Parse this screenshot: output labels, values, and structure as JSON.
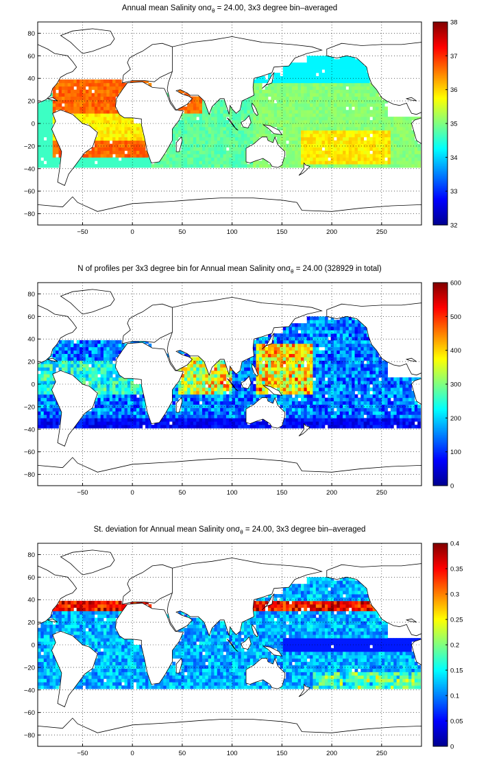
{
  "panels": [
    {
      "title_pre": "Annual mean Salinity on",
      "title_sym": "σ",
      "title_sub": "θ",
      "title_post": " = 24.00, 3x3 degree bin–averaged",
      "colorbar_ticks": [
        "38",
        "37",
        "36",
        "35",
        "34",
        "33",
        "32"
      ]
    },
    {
      "title_pre": "N of profiles per 3x3 degree bin for Annual mean Salinity on",
      "title_sym": "σ",
      "title_sub": "θ",
      "title_post": " = 24.00 (328929 in total)",
      "colorbar_ticks": [
        "600",
        "500",
        "400",
        "300",
        "200",
        "100",
        "0"
      ]
    },
    {
      "title_pre": "St. deviation for Annual mean Salinity on",
      "title_sym": "σ",
      "title_sub": "θ",
      "title_post": " = 24.00, 3x3 degree bin–averaged",
      "colorbar_ticks": [
        "0.4",
        "0.35",
        "0.3",
        "0.25",
        "0.2",
        "0.15",
        "0.1",
        "0.05",
        "0"
      ]
    }
  ],
  "axes": {
    "x_ticks": [
      "−50",
      "0",
      "50",
      "100",
      "150",
      "200",
      "250"
    ],
    "y_ticks": [
      "80",
      "60",
      "40",
      "20",
      "0",
      "−20",
      "−40",
      "−60",
      "−80"
    ],
    "xlim": [
      -95,
      290
    ],
    "ylim": [
      -90,
      90
    ],
    "grid": "dotted"
  },
  "colormap": "jet",
  "colors": {
    "land_outline": "#000000",
    "background": "#ffffff",
    "colormap_stops": [
      "#00008f",
      "#0000ff",
      "#0080ff",
      "#00ffff",
      "#80ff80",
      "#ffff00",
      "#ff8000",
      "#ff0000",
      "#800000"
    ]
  }
}
